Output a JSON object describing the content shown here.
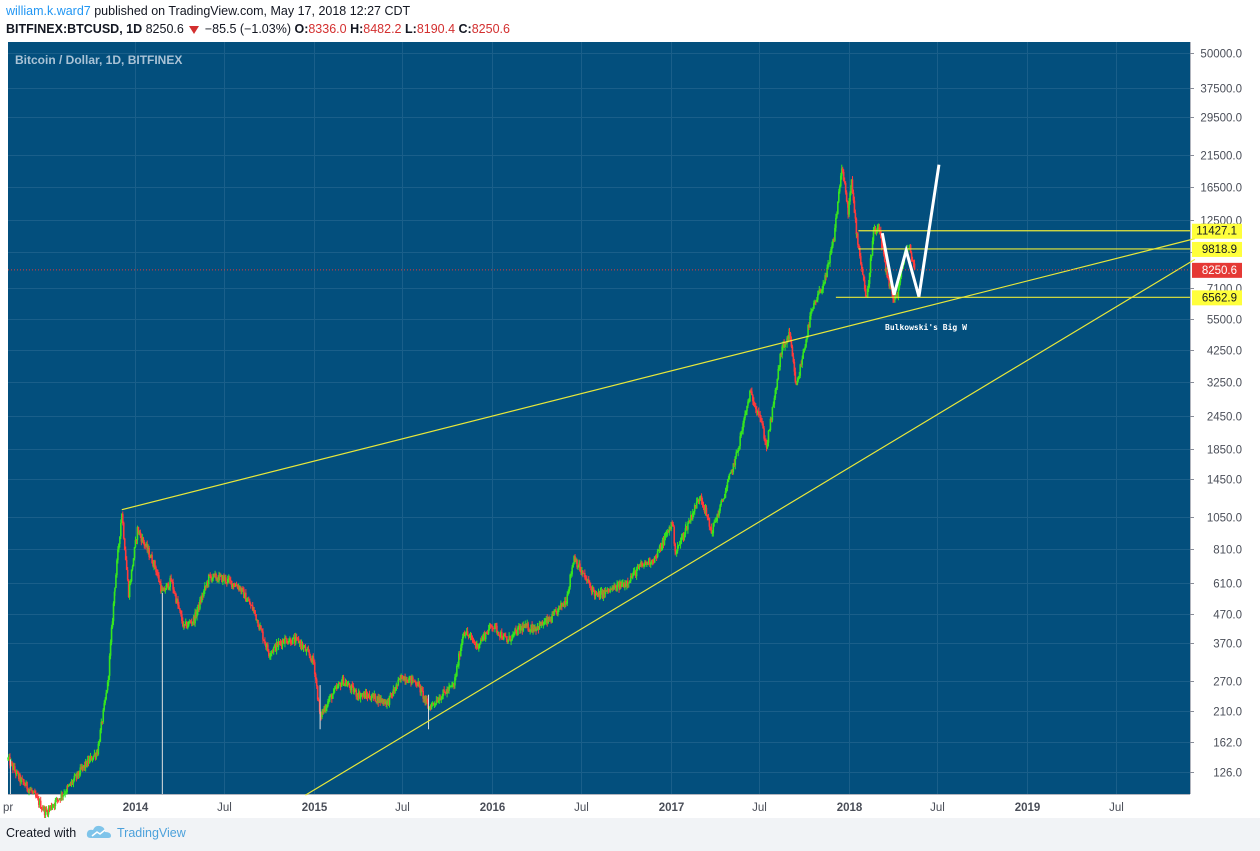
{
  "header": {
    "username": "william.k.ward7",
    "published_text": "published on TradingView.com, May 17, 2018 12:27 CDT",
    "symbol": "BITFINEX:BTCUSD, 1D",
    "last": "8250.6",
    "change": "−85.5 (−1.03%)",
    "o_label": "O:",
    "o_value": "8336.0",
    "h_label": "H:",
    "h_value": "8482.2",
    "l_label": "L:",
    "l_value": "8190.4",
    "c_label": "C:",
    "c_value": "8250.6"
  },
  "footer": {
    "created_with": "Created with",
    "brand": "TradingView",
    "logo_icon": "tradingview-cloud-icon"
  },
  "colors": {
    "plot_bg": "#034f7d",
    "grid": "#1a5f8a",
    "up": "#35e51f",
    "down": "#ff3b3b",
    "trendline": "#e8e83a",
    "pattern": "#ffffff",
    "last_price": "#e53935"
  },
  "chart_data": {
    "type": "candlestick",
    "title": "Bitcoin / Dollar, 1D, BITFINEX",
    "y_scale": "log",
    "ylim": [
      105,
      55000
    ],
    "xlim": [
      "2013-04-15",
      "2019-11-30"
    ],
    "y_ticks": [
      "50000.0",
      "37500.0",
      "29500.0",
      "21500.0",
      "16500.0",
      "12500.0",
      "9600.0",
      "7100.0",
      "5500.0",
      "4250.0",
      "3250.0",
      "2450.0",
      "1850.0",
      "1450.0",
      "1050.0",
      "810.0",
      "610.0",
      "470.0",
      "370.0",
      "270.0",
      "210.0",
      "162.0",
      "126.0"
    ],
    "x_ticks": [
      {
        "label": "pr",
        "date": "2013-04-15",
        "bold": false
      },
      {
        "label": "2014",
        "date": "2014-01-01",
        "bold": true
      },
      {
        "label": "Jul",
        "date": "2014-07-01",
        "bold": false
      },
      {
        "label": "2015",
        "date": "2015-01-01",
        "bold": true
      },
      {
        "label": "Jul",
        "date": "2015-07-01",
        "bold": false
      },
      {
        "label": "2016",
        "date": "2016-01-01",
        "bold": true
      },
      {
        "label": "Jul",
        "date": "2016-07-01",
        "bold": false
      },
      {
        "label": "2017",
        "date": "2017-01-01",
        "bold": true
      },
      {
        "label": "Jul",
        "date": "2017-07-01",
        "bold": false
      },
      {
        "label": "2018",
        "date": "2018-01-01",
        "bold": true
      },
      {
        "label": "Jul",
        "date": "2018-07-01",
        "bold": false
      },
      {
        "label": "2019",
        "date": "2019-01-01",
        "bold": true
      },
      {
        "label": "Jul",
        "date": "2019-07-01",
        "bold": false
      }
    ],
    "price_path": [
      [
        "2013-04-15",
        140
      ],
      [
        "2013-05-10",
        118
      ],
      [
        "2013-06-01",
        108
      ],
      [
        "2013-07-01",
        90
      ],
      [
        "2013-08-15",
        110
      ],
      [
        "2013-09-15",
        130
      ],
      [
        "2013-10-15",
        150
      ],
      [
        "2013-11-05",
        260
      ],
      [
        "2013-11-20",
        600
      ],
      [
        "2013-12-04",
        1100
      ],
      [
        "2013-12-18",
        560
      ],
      [
        "2014-01-05",
        950
      ],
      [
        "2014-02-10",
        700
      ],
      [
        "2014-02-25",
        560
      ],
      [
        "2014-03-15",
        620
      ],
      [
        "2014-04-10",
        420
      ],
      [
        "2014-05-01",
        450
      ],
      [
        "2014-06-01",
        640
      ],
      [
        "2014-07-01",
        630
      ],
      [
        "2014-08-01",
        590
      ],
      [
        "2014-09-01",
        480
      ],
      [
        "2014-10-01",
        340
      ],
      [
        "2014-11-01",
        380
      ],
      [
        "2014-12-01",
        375
      ],
      [
        "2015-01-01",
        315
      ],
      [
        "2015-01-14",
        200
      ],
      [
        "2015-02-01",
        230
      ],
      [
        "2015-03-01",
        270
      ],
      [
        "2015-04-01",
        240
      ],
      [
        "2015-05-01",
        236
      ],
      [
        "2015-06-01",
        225
      ],
      [
        "2015-07-01",
        280
      ],
      [
        "2015-08-01",
        265
      ],
      [
        "2015-08-24",
        215
      ],
      [
        "2015-09-15",
        235
      ],
      [
        "2015-10-15",
        260
      ],
      [
        "2015-11-04",
        410
      ],
      [
        "2015-12-01",
        360
      ],
      [
        "2016-01-01",
        430
      ],
      [
        "2016-02-01",
        375
      ],
      [
        "2016-03-01",
        420
      ],
      [
        "2016-04-01",
        420
      ],
      [
        "2016-05-01",
        450
      ],
      [
        "2016-06-01",
        530
      ],
      [
        "2016-06-17",
        760
      ],
      [
        "2016-07-01",
        670
      ],
      [
        "2016-08-02",
        545
      ],
      [
        "2016-09-01",
        575
      ],
      [
        "2016-10-01",
        610
      ],
      [
        "2016-11-01",
        700
      ],
      [
        "2016-12-01",
        750
      ],
      [
        "2017-01-04",
        1010
      ],
      [
        "2017-01-11",
        780
      ],
      [
        "2017-02-01",
        960
      ],
      [
        "2017-03-03",
        1270
      ],
      [
        "2017-03-25",
        930
      ],
      [
        "2017-04-15",
        1180
      ],
      [
        "2017-05-15",
        1750
      ],
      [
        "2017-06-12",
        2950
      ],
      [
        "2017-07-01",
        2500
      ],
      [
        "2017-07-16",
        1900
      ],
      [
        "2017-08-01",
        2800
      ],
      [
        "2017-08-15",
        4200
      ],
      [
        "2017-09-01",
        4800
      ],
      [
        "2017-09-15",
        3100
      ],
      [
        "2017-10-01",
        4300
      ],
      [
        "2017-10-15",
        5700
      ],
      [
        "2017-11-01",
        6800
      ],
      [
        "2017-11-15",
        7800
      ],
      [
        "2017-12-01",
        10800
      ],
      [
        "2017-12-17",
        19500
      ],
      [
        "2017-12-30",
        13500
      ],
      [
        "2018-01-06",
        17000
      ],
      [
        "2018-01-17",
        11000
      ],
      [
        "2018-02-06",
        6400
      ],
      [
        "2018-02-20",
        11300
      ],
      [
        "2018-03-05",
        11400
      ],
      [
        "2018-03-18",
        7900
      ],
      [
        "2018-04-01",
        6600
      ],
      [
        "2018-04-10",
        6700
      ],
      [
        "2018-04-25",
        9500
      ],
      [
        "2018-05-05",
        9800
      ],
      [
        "2018-05-16",
        8250
      ]
    ],
    "annotations": {
      "pattern_label": "Bulkowski's Big W",
      "horizontal_levels": [
        {
          "label": "11427.1",
          "value": 11427.1,
          "start": "2018-01-20"
        },
        {
          "label": "9818.9",
          "value": 9818.9,
          "start": "2018-01-20"
        },
        {
          "label": "6562.9",
          "value": 6562.9,
          "start": "2017-12-05"
        }
      ],
      "last_price": {
        "label": "8250.6",
        "value": 8250.6
      },
      "trendlines": [
        {
          "from": [
            "2013-12-04",
            1120
          ],
          "to": [
            "2019-12-10",
            10700
          ]
        },
        {
          "from": [
            "2014-12-15",
            104
          ],
          "to": [
            "2019-12-10",
            9000
          ]
        }
      ],
      "big_w": [
        [
          "2018-03-10",
          11200
        ],
        [
          "2018-04-03",
          6700
        ],
        [
          "2018-04-28",
          9700
        ],
        [
          "2018-05-24",
          6600
        ],
        [
          "2018-07-04",
          19800
        ]
      ]
    }
  }
}
